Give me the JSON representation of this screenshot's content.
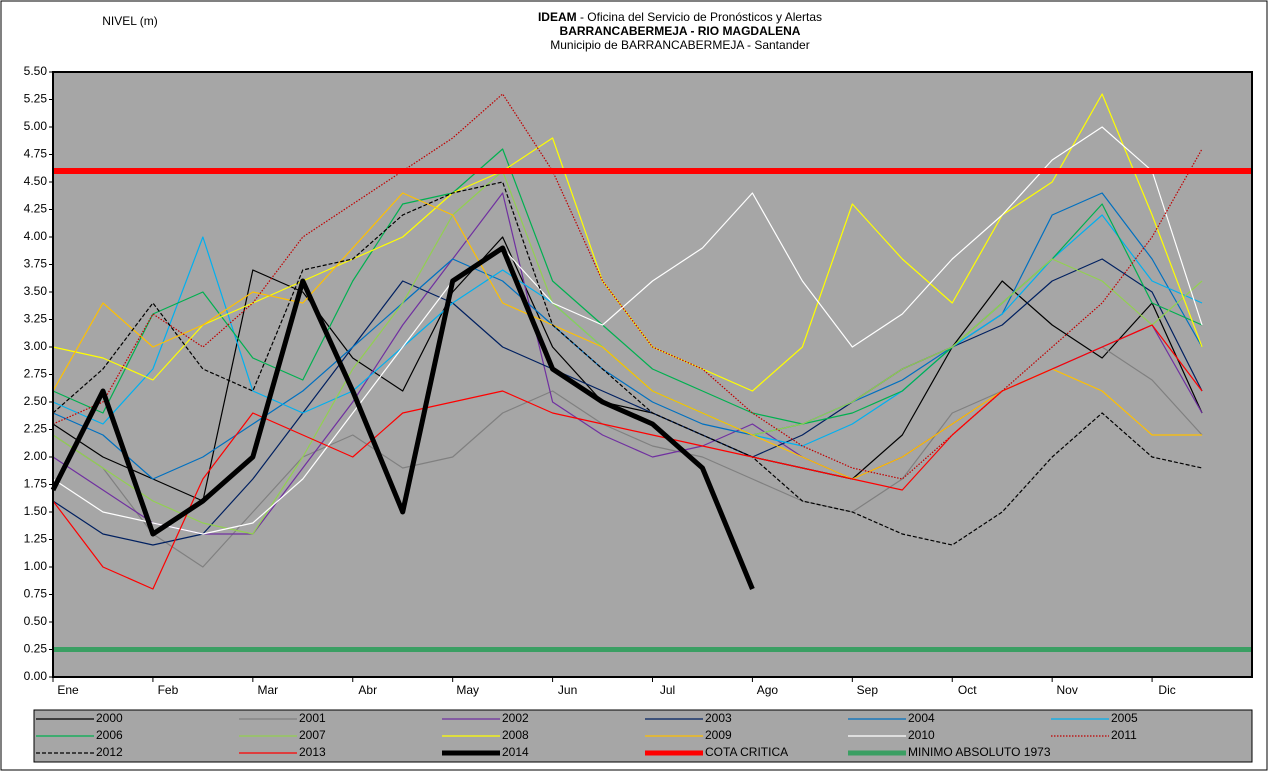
{
  "chart_data": {
    "type": "line",
    "y_axis_label": "NIVEL (m)",
    "title_org": "IDEAM",
    "title_office": " - Oficina del Servicio de Pronósticos y Alertas",
    "title": "BARRANCABERMEJA - RIO MAGDALENA",
    "subtitle": "Municipio de BARRANCABERMEJA - Santander",
    "categories": [
      "Ene",
      null,
      "Feb",
      null,
      "Mar",
      null,
      "Abr",
      null,
      "May",
      null,
      "Jun",
      null,
      "Jul",
      null,
      "Ago",
      null,
      "Sep",
      null,
      "Oct",
      null,
      "Nov",
      null,
      "Dic",
      null
    ],
    "ylim": [
      0,
      5.5
    ],
    "yticks": [
      {
        "value": 0,
        "label": "0.00"
      },
      {
        "value": 0.25,
        "label": "0.25"
      },
      {
        "value": 0.5,
        "label": "0.50"
      },
      {
        "value": 0.75,
        "label": "0.75"
      },
      {
        "value": 1,
        "label": "1.00"
      },
      {
        "value": 1.25,
        "label": "1.25"
      },
      {
        "value": 1.5,
        "label": "1.50"
      },
      {
        "value": 1.75,
        "label": "1.75"
      },
      {
        "value": 2,
        "label": "2.00"
      },
      {
        "value": 2.25,
        "label": "2.25"
      },
      {
        "value": 2.5,
        "label": "2.50"
      },
      {
        "value": 2.75,
        "label": "2.75"
      },
      {
        "value": 3,
        "label": "3.00"
      },
      {
        "value": 3.25,
        "label": "3.25"
      },
      {
        "value": 3.5,
        "label": "3.50"
      },
      {
        "value": 3.75,
        "label": "3.75"
      },
      {
        "value": 4,
        "label": "4.00"
      },
      {
        "value": 4.25,
        "label": "4.25"
      },
      {
        "value": 4.5,
        "label": "4.50"
      },
      {
        "value": 4.75,
        "label": "4.75"
      },
      {
        "value": 5,
        "label": "5.00"
      },
      {
        "value": 5.25,
        "label": "5.25"
      },
      {
        "value": 5.5,
        "label": "5.50"
      }
    ],
    "background": "#a6a6a6",
    "series": [
      {
        "name": "2000",
        "color": "#000000",
        "values": [
          2.3,
          2.0,
          1.8,
          1.6,
          3.7,
          3.5,
          2.9,
          2.6,
          3.5,
          4.0,
          3.0,
          2.5,
          2.4,
          2.2,
          2.0,
          1.9,
          1.8,
          2.2,
          3.0,
          3.6,
          3.2,
          2.9,
          3.4,
          2.4
        ]
      },
      {
        "name": "2001",
        "color": "#808080",
        "values": [
          2.2,
          1.9,
          1.3,
          1.0,
          1.5,
          2.0,
          2.2,
          1.9,
          2.0,
          2.4,
          2.6,
          2.3,
          2.1,
          2.0,
          1.8,
          1.6,
          1.5,
          1.8,
          2.4,
          2.6,
          2.8,
          3.0,
          2.7,
          2.2
        ]
      },
      {
        "name": "2002",
        "color": "#7030a0",
        "values": [
          2.0,
          1.7,
          1.4,
          1.3,
          1.3,
          1.9,
          2.5,
          3.2,
          3.8,
          4.4,
          2.5,
          2.2,
          2.0,
          2.1,
          2.3,
          2.0,
          1.8,
          2.0,
          2.3,
          2.6,
          2.8,
          3.0,
          3.2,
          2.4
        ]
      },
      {
        "name": "2003",
        "color": "#002060",
        "values": [
          1.6,
          1.3,
          1.2,
          1.3,
          1.8,
          2.4,
          3.0,
          3.6,
          3.4,
          3.0,
          2.8,
          2.6,
          2.4,
          2.2,
          2.0,
          2.2,
          2.5,
          2.8,
          3.0,
          3.2,
          3.6,
          3.8,
          3.5,
          2.6
        ]
      },
      {
        "name": "2004",
        "color": "#0070c0",
        "values": [
          2.4,
          2.2,
          1.8,
          2.0,
          2.3,
          2.6,
          3.0,
          3.4,
          3.8,
          3.6,
          3.2,
          2.8,
          2.5,
          2.3,
          2.2,
          2.3,
          2.5,
          2.7,
          3.0,
          3.3,
          4.2,
          4.4,
          3.8,
          3.0
        ]
      },
      {
        "name": "2005",
        "color": "#00b0f0",
        "values": [
          2.5,
          2.3,
          2.8,
          4.0,
          2.6,
          2.4,
          2.6,
          3.0,
          3.4,
          3.7,
          3.4,
          3.0,
          2.6,
          2.4,
          2.2,
          2.1,
          2.3,
          2.6,
          3.0,
          3.3,
          3.8,
          4.2,
          3.6,
          3.4
        ]
      },
      {
        "name": "2006",
        "color": "#00b050",
        "values": [
          2.6,
          2.4,
          3.3,
          3.5,
          2.9,
          2.7,
          3.6,
          4.3,
          4.4,
          4.8,
          3.6,
          3.2,
          2.8,
          2.6,
          2.4,
          2.3,
          2.4,
          2.6,
          3.0,
          3.4,
          3.8,
          4.3,
          3.4,
          3.2
        ]
      },
      {
        "name": "2007",
        "color": "#92d050",
        "values": [
          2.2,
          1.9,
          1.6,
          1.4,
          1.3,
          2.0,
          2.8,
          3.4,
          4.2,
          4.6,
          3.4,
          3.0,
          2.6,
          2.4,
          2.2,
          2.3,
          2.5,
          2.8,
          3.0,
          3.4,
          3.8,
          3.6,
          3.2,
          3.6
        ]
      },
      {
        "name": "2008",
        "color": "#ffff00",
        "values": [
          3.0,
          2.9,
          2.7,
          3.2,
          3.4,
          3.6,
          3.8,
          4.0,
          4.4,
          4.6,
          4.9,
          3.6,
          3.0,
          2.8,
          2.6,
          3.0,
          4.3,
          3.8,
          3.4,
          4.2,
          4.5,
          5.3,
          4.2,
          3.0
        ]
      },
      {
        "name": "2009",
        "color": "#ffc000",
        "values": [
          2.6,
          3.4,
          3.0,
          3.2,
          3.5,
          3.4,
          3.9,
          4.4,
          4.2,
          3.4,
          3.2,
          3.0,
          2.6,
          2.4,
          2.2,
          2.0,
          1.8,
          2.0,
          2.3,
          2.6,
          2.8,
          2.6,
          2.2,
          2.2
        ]
      },
      {
        "name": "2010",
        "color": "#ffffff",
        "values": [
          1.8,
          1.5,
          1.4,
          1.3,
          1.4,
          1.8,
          2.4,
          3.0,
          3.6,
          3.9,
          3.4,
          3.2,
          3.6,
          3.9,
          4.4,
          3.6,
          3.0,
          3.3,
          3.8,
          4.2,
          4.7,
          5.0,
          4.6,
          3.2
        ]
      },
      {
        "name": "2011",
        "color": "#c00000",
        "style": "dotted",
        "values": [
          2.3,
          2.5,
          3.3,
          3.0,
          3.4,
          4.0,
          4.3,
          4.6,
          4.9,
          5.3,
          4.6,
          3.6,
          3.0,
          2.8,
          2.4,
          2.1,
          1.9,
          1.8,
          2.2,
          2.6,
          3.0,
          3.4,
          4.0,
          4.8
        ]
      },
      {
        "name": "2012",
        "color": "#000000",
        "style": "dashed",
        "values": [
          2.4,
          2.8,
          3.4,
          2.8,
          2.6,
          3.7,
          3.8,
          4.2,
          4.4,
          4.5,
          3.2,
          2.8,
          2.4,
          2.2,
          2.0,
          1.6,
          1.5,
          1.3,
          1.2,
          1.5,
          2.0,
          2.4,
          2.0,
          1.9
        ]
      },
      {
        "name": "2013",
        "color": "#ff0000",
        "values": [
          1.6,
          1.0,
          0.8,
          1.8,
          2.4,
          2.2,
          2.0,
          2.4,
          2.5,
          2.6,
          2.4,
          2.3,
          2.2,
          2.1,
          2.0,
          1.9,
          1.8,
          1.7,
          2.2,
          2.6,
          2.8,
          3.0,
          3.2,
          2.6
        ]
      },
      {
        "name": "2014",
        "color": "#000000",
        "linewidth": 5,
        "values": [
          1.7,
          2.6,
          1.3,
          1.6,
          2.0,
          3.6,
          2.6,
          1.5,
          3.6,
          3.9,
          2.8,
          2.5,
          2.3,
          1.9,
          0.8,
          null,
          null,
          null,
          null,
          null,
          null,
          null,
          null,
          null
        ]
      }
    ],
    "hlines": [
      {
        "name": "COTA CRITICA",
        "color": "#ff0000",
        "linewidth": 6,
        "value": 4.6
      },
      {
        "name": "MINIMO ABSOLUTO 1973",
        "color": "#3a9f63",
        "linewidth": 5,
        "value": 0.25
      }
    ]
  }
}
